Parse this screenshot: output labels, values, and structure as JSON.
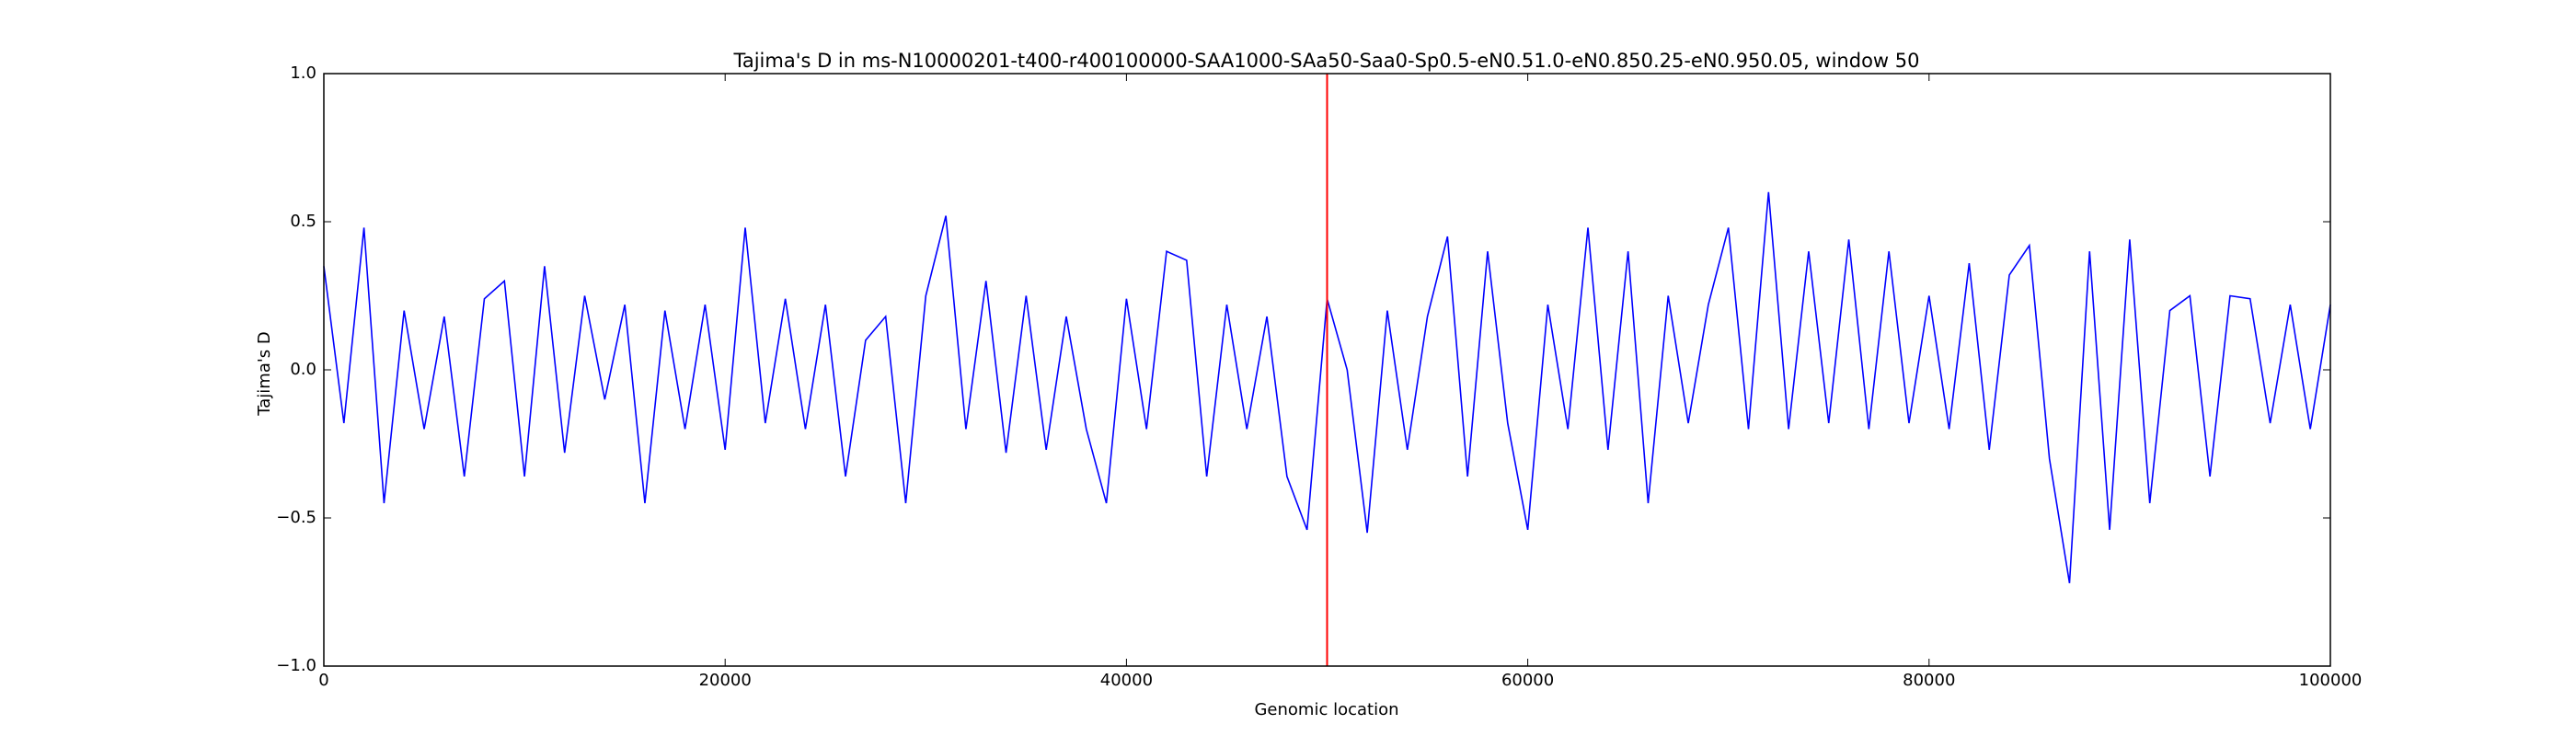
{
  "chart_data": {
    "type": "line",
    "title": "Tajima's D in ms-N10000201-t400-r400100000-SAA1000-SAa50-Saa0-Sp0.5-eN0.51.0-eN0.850.25-eN0.950.05, window 50",
    "x_label": "Genomic location",
    "y_label": "Tajima's D",
    "x": [
      0,
      1000,
      2000,
      3000,
      4000,
      5000,
      6000,
      7000,
      8000,
      9000,
      10000,
      11000,
      12000,
      13000,
      14000,
      15000,
      16000,
      17000,
      18000,
      19000,
      20000,
      21000,
      22000,
      23000,
      24000,
      25000,
      26000,
      27000,
      28000,
      29000,
      30000,
      31000,
      32000,
      33000,
      34000,
      35000,
      36000,
      37000,
      38000,
      39000,
      40000,
      41000,
      42000,
      43000,
      44000,
      45000,
      46000,
      47000,
      48000,
      49000,
      50000,
      51000,
      52000,
      53000,
      54000,
      55000,
      56000,
      57000,
      58000,
      59000,
      60000,
      61000,
      62000,
      63000,
      64000,
      65000,
      66000,
      67000,
      68000,
      69000,
      70000,
      71000,
      72000,
      73000,
      74000,
      75000,
      76000,
      77000,
      78000,
      79000,
      80000,
      81000,
      82000,
      83000,
      84000,
      85000,
      86000,
      87000,
      88000,
      89000,
      90000,
      91000,
      92000,
      93000,
      94000,
      95000,
      96000,
      97000,
      98000,
      99000,
      100000
    ],
    "series": [
      {
        "name": "Tajima's D",
        "color": "#0000ff",
        "values": [
          0.35,
          -0.18,
          0.48,
          -0.45,
          0.2,
          -0.2,
          0.18,
          -0.36,
          0.24,
          0.3,
          -0.36,
          0.35,
          -0.28,
          0.25,
          -0.1,
          0.22,
          -0.45,
          0.2,
          -0.2,
          0.22,
          -0.27,
          0.48,
          -0.18,
          0.24,
          -0.2,
          0.22,
          -0.36,
          0.1,
          0.18,
          -0.45,
          0.25,
          0.52,
          -0.2,
          0.3,
          -0.28,
          0.25,
          -0.27,
          0.18,
          -0.2,
          -0.45,
          0.24,
          -0.2,
          0.4,
          0.37,
          -0.36,
          0.22,
          -0.2,
          0.18,
          -0.36,
          -0.54,
          0.24,
          0,
          -0.55,
          0.2,
          -0.27,
          0.18,
          0.45,
          -0.36,
          0.4,
          -0.18,
          -0.54,
          0.22,
          -0.2,
          0.48,
          -0.27,
          0.4,
          -0.45,
          0.25,
          -0.18,
          0.22,
          0.48,
          -0.2,
          0.6,
          -0.2,
          0.4,
          -0.18,
          0.44,
          -0.2,
          0.4,
          -0.18,
          0.25,
          -0.2,
          0.36,
          -0.27,
          0.32,
          0.42,
          -0.3,
          -0.72,
          0.4,
          -0.54,
          0.44,
          -0.45,
          0.2,
          0.25,
          -0.36,
          0.25,
          0.24,
          -0.18,
          0.22,
          -0.2,
          0.22
        ]
      }
    ],
    "vline": {
      "x": 50000,
      "color": "#ff0000"
    },
    "xlim": [
      0,
      100000
    ],
    "xticks": [
      0,
      20000,
      40000,
      60000,
      80000,
      100000
    ],
    "ylim": [
      -1,
      1
    ],
    "yticks": [
      {
        "value": -1,
        "label": "−1.0"
      },
      {
        "value": -0.5,
        "label": "−0.5"
      },
      {
        "value": 0,
        "label": "0.0"
      },
      {
        "value": 0.5,
        "label": "0.5"
      },
      {
        "value": 1,
        "label": "1.0"
      }
    ]
  }
}
